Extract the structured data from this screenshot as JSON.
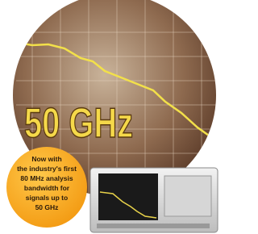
{
  "headline": "50 GHz",
  "badge": {
    "lines": [
      "Now with",
      "the industry's first",
      "80 MHz analysis",
      "bandwidth for",
      "signals up to",
      "50 GHz"
    ]
  }
}
